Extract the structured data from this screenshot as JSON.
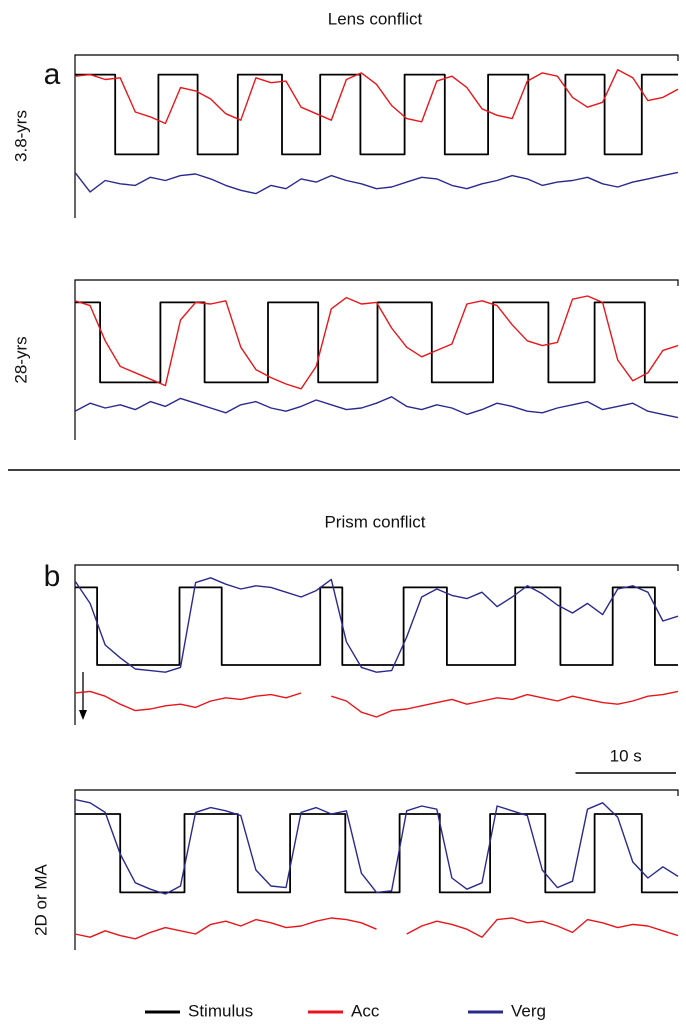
{
  "sections": [
    {
      "title": "Lens conflict",
      "label": "a"
    },
    {
      "title": "Prism conflict",
      "label": "b"
    }
  ],
  "chart_data": [
    {
      "type": "line",
      "ylabel": "3.8-yrs",
      "xlim": [
        0,
        60
      ],
      "ylim": [
        0,
        10
      ],
      "x": [
        0,
        1.5,
        3,
        4.5,
        6,
        7.5,
        9,
        10.5,
        12,
        13.5,
        15,
        16.5,
        18,
        19.5,
        21,
        22.5,
        24,
        25.5,
        27,
        28.5,
        30,
        31.5,
        33,
        34.5,
        36,
        37.5,
        39,
        40.5,
        42,
        43.5,
        45,
        46.5,
        48,
        49.5,
        51,
        52.5,
        54,
        55.5,
        57,
        58.5,
        60
      ],
      "series": [
        {
          "name": "Stimulus",
          "color": "#000000",
          "x": [
            0,
            4,
            4,
            8.3,
            8.3,
            12.2,
            12.2,
            16.2,
            16.2,
            20.6,
            20.6,
            24.4,
            24.4,
            28.4,
            28.4,
            32.8,
            32.8,
            36.8,
            36.8,
            41.1,
            41.1,
            45.1,
            45.1,
            48.8,
            48.8,
            52.7,
            52.7,
            56.4,
            56.4,
            60
          ],
          "values": [
            8.8,
            8.8,
            3.9,
            3.9,
            8.8,
            8.8,
            3.9,
            3.9,
            8.8,
            8.8,
            3.9,
            3.9,
            8.8,
            8.8,
            3.9,
            3.9,
            8.8,
            8.8,
            3.9,
            3.9,
            8.8,
            8.8,
            3.9,
            3.9,
            8.8,
            8.8,
            3.9,
            3.9,
            8.8,
            8.8
          ]
        },
        {
          "name": "Acc",
          "color": "#e8161b",
          "values": [
            8.7,
            8.8,
            8.5,
            8.6,
            6.5,
            6.2,
            5.8,
            8.0,
            7.8,
            7.3,
            6.4,
            6.0,
            8.6,
            8.3,
            8.4,
            6.8,
            6.4,
            6.0,
            8.5,
            8.9,
            8.2,
            6.9,
            6.1,
            5.9,
            8.4,
            8.7,
            8.0,
            6.7,
            6.3,
            6.1,
            8.4,
            8.9,
            8.7,
            7.4,
            6.8,
            7.1,
            9.1,
            8.6,
            7.2,
            7.4,
            7.9
          ]
        },
        {
          "name": "Verg",
          "color": "#2b2a8c",
          "values": [
            2.8,
            1.6,
            2.3,
            2.1,
            2.0,
            2.5,
            2.3,
            2.6,
            2.7,
            2.4,
            2.0,
            1.7,
            1.5,
            2.0,
            1.8,
            2.4,
            2.2,
            2.6,
            2.3,
            2.1,
            1.8,
            1.9,
            2.2,
            2.5,
            2.4,
            2.0,
            1.8,
            2.1,
            2.3,
            2.6,
            2.4,
            2.0,
            2.2,
            2.3,
            2.5,
            2.1,
            1.9,
            2.2,
            2.4,
            2.6,
            2.8
          ]
        }
      ]
    },
    {
      "type": "line",
      "ylabel": "28-yrs",
      "xlim": [
        0,
        60
      ],
      "ylim": [
        0,
        10
      ],
      "x": [
        0,
        1.5,
        3,
        4.5,
        6,
        7.5,
        9,
        10.5,
        12,
        13.5,
        15,
        16.5,
        18,
        19.5,
        21,
        22.5,
        24,
        25.5,
        27,
        28.5,
        30,
        31.5,
        33,
        34.5,
        36,
        37.5,
        39,
        40.5,
        42,
        43.5,
        45,
        46.5,
        48,
        49.5,
        51,
        52.5,
        54,
        55.5,
        57,
        58.5,
        60
      ],
      "series": [
        {
          "name": "Stimulus",
          "color": "#000000",
          "x": [
            0,
            2.5,
            2.5,
            8.5,
            8.5,
            12.9,
            12.9,
            19.2,
            19.2,
            24.2,
            24.2,
            30.1,
            30.1,
            35.5,
            35.5,
            41.6,
            41.6,
            47.1,
            47.1,
            51.7,
            51.7,
            56.7,
            56.7,
            60
          ],
          "values": [
            8.6,
            8.6,
            3.6,
            3.6,
            8.6,
            8.6,
            3.6,
            3.6,
            8.6,
            8.6,
            3.6,
            3.6,
            8.6,
            8.6,
            3.6,
            3.6,
            8.6,
            8.6,
            3.6,
            3.6,
            8.6,
            8.6,
            3.6,
            3.6
          ]
        },
        {
          "name": "Acc",
          "color": "#e8161b",
          "values": [
            8.7,
            8.4,
            6.2,
            4.6,
            4.2,
            3.8,
            3.4,
            7.5,
            8.6,
            8.5,
            8.7,
            5.8,
            4.4,
            3.9,
            3.5,
            3.2,
            4.6,
            8.2,
            8.9,
            8.5,
            8.6,
            7.0,
            5.8,
            5.2,
            5.6,
            6.0,
            8.5,
            8.7,
            8.4,
            7.2,
            6.2,
            5.9,
            6.1,
            8.8,
            9.0,
            8.6,
            5.0,
            3.7,
            4.2,
            5.6,
            5.9
          ]
        },
        {
          "name": "Verg",
          "color": "#2b2a8c",
          "values": [
            1.8,
            2.3,
            2.0,
            2.2,
            1.9,
            2.4,
            2.1,
            2.6,
            2.3,
            2.0,
            1.7,
            2.2,
            2.4,
            2.0,
            1.8,
            2.1,
            2.5,
            2.2,
            1.9,
            2.0,
            2.3,
            2.7,
            2.1,
            1.9,
            2.2,
            2.0,
            1.6,
            1.9,
            2.3,
            2.1,
            1.8,
            1.7,
            2.0,
            2.2,
            2.4,
            1.9,
            2.1,
            2.3,
            1.8,
            1.6,
            1.4
          ]
        }
      ]
    },
    {
      "type": "line",
      "xlim": [
        0,
        60
      ],
      "ylim": [
        0,
        10
      ],
      "scale_bar": {
        "value": 10,
        "label": "10 s"
      },
      "x": [
        0,
        1.5,
        3,
        4.5,
        6,
        7.5,
        9,
        10.5,
        12,
        13.5,
        15,
        16.5,
        18,
        19.5,
        21,
        22.5,
        24,
        25.5,
        27,
        28.5,
        30,
        31.5,
        33,
        34.5,
        36,
        37.5,
        39,
        40.5,
        42,
        43.5,
        45,
        46.5,
        48,
        49.5,
        51,
        52.5,
        54,
        55.5,
        57,
        58.5,
        60
      ],
      "series": [
        {
          "name": "Stimulus",
          "color": "#000000",
          "x": [
            0,
            2.2,
            2.2,
            10.4,
            10.4,
            14.6,
            14.6,
            24.4,
            24.4,
            26.6,
            26.6,
            32.7,
            32.7,
            37,
            37,
            43.8,
            43.8,
            48.3,
            48.3,
            53.5,
            53.5,
            57.7,
            57.7,
            60
          ],
          "values": [
            8.6,
            8.6,
            3.75,
            3.75,
            8.6,
            8.6,
            3.75,
            3.75,
            8.6,
            8.6,
            3.75,
            3.75,
            8.6,
            8.6,
            3.75,
            3.75,
            8.6,
            8.6,
            3.75,
            3.75,
            8.6,
            8.6,
            3.75,
            3.75
          ]
        },
        {
          "name": "Acc",
          "color": "#e8161b",
          "values": [
            2.0,
            2.1,
            1.8,
            1.3,
            0.9,
            1.0,
            1.2,
            1.3,
            1.1,
            1.5,
            1.7,
            1.6,
            1.8,
            1.9,
            1.7,
            2.0,
            null,
            1.8,
            1.5,
            0.8,
            0.5,
            0.9,
            1.0,
            1.2,
            1.4,
            1.6,
            1.3,
            1.5,
            1.7,
            1.6,
            1.9,
            1.7,
            1.5,
            1.8,
            1.6,
            1.4,
            1.3,
            1.5,
            1.8,
            1.9,
            2.1
          ]
        },
        {
          "name": "Verg",
          "color": "#2b2a8c",
          "values": [
            9.0,
            7.6,
            5.0,
            4.2,
            3.5,
            3.4,
            3.3,
            3.6,
            8.9,
            9.2,
            8.8,
            8.5,
            8.7,
            8.6,
            8.3,
            8.0,
            8.4,
            9.1,
            5.2,
            3.6,
            3.3,
            3.4,
            5.5,
            8.0,
            8.5,
            8.1,
            7.9,
            8.3,
            7.4,
            8.0,
            8.7,
            8.2,
            7.5,
            7.0,
            7.6,
            6.9,
            8.5,
            8.7,
            8.3,
            6.5,
            6.8
          ]
        }
      ]
    },
    {
      "type": "line",
      "ylabel": "2D or MA",
      "xlim": [
        0,
        60
      ],
      "ylim": [
        0,
        10
      ],
      "x": [
        0,
        1.5,
        3,
        4.5,
        6,
        7.5,
        9,
        10.5,
        12,
        13.5,
        15,
        16.5,
        18,
        19.5,
        21,
        22.5,
        24,
        25.5,
        27,
        28.5,
        30,
        31.5,
        33,
        34.5,
        36,
        37.5,
        39,
        40.5,
        42,
        43.5,
        45,
        46.5,
        48,
        49.5,
        51,
        52.5,
        54,
        55.5,
        57,
        58.5,
        60
      ],
      "series": [
        {
          "name": "Stimulus",
          "color": "#000000",
          "x": [
            0,
            4.5,
            4.5,
            10.9,
            10.9,
            16.2,
            16.2,
            21.4,
            21.4,
            26.9,
            26.9,
            32.3,
            32.3,
            36.3,
            36.3,
            41.3,
            41.3,
            46.8,
            46.8,
            51.7,
            51.7,
            56.4,
            56.4,
            60
          ],
          "values": [
            8.5,
            8.5,
            3.6,
            3.6,
            8.5,
            8.5,
            3.6,
            3.6,
            8.5,
            8.5,
            3.6,
            3.6,
            8.5,
            8.5,
            3.6,
            3.6,
            8.5,
            8.5,
            3.6,
            3.6,
            8.5,
            8.5,
            3.6,
            3.6
          ]
        },
        {
          "name": "Acc",
          "color": "#e8161b",
          "values": [
            1.0,
            0.8,
            1.2,
            0.9,
            0.7,
            1.1,
            1.4,
            1.2,
            1.0,
            1.6,
            1.8,
            1.5,
            1.9,
            1.7,
            1.4,
            1.5,
            1.8,
            2.0,
            1.9,
            1.7,
            1.3,
            null,
            1.0,
            1.5,
            1.8,
            1.6,
            1.3,
            0.8,
            1.9,
            2.0,
            1.7,
            1.8,
            1.5,
            1.1,
            1.9,
            1.7,
            1.4,
            1.6,
            1.5,
            1.2,
            0.9
          ]
        },
        {
          "name": "Verg",
          "color": "#2b2a8c",
          "values": [
            9.4,
            9.2,
            8.6,
            6.0,
            4.2,
            3.8,
            3.5,
            4.0,
            8.6,
            8.9,
            8.7,
            8.4,
            5.0,
            4.0,
            3.9,
            8.6,
            8.9,
            8.5,
            8.7,
            4.8,
            3.6,
            3.7,
            8.7,
            9.0,
            8.8,
            4.5,
            3.8,
            4.2,
            9.0,
            8.7,
            8.4,
            5.0,
            3.9,
            4.3,
            8.8,
            9.2,
            8.3,
            5.5,
            4.5,
            5.2,
            4.6
          ]
        }
      ]
    }
  ]
}
